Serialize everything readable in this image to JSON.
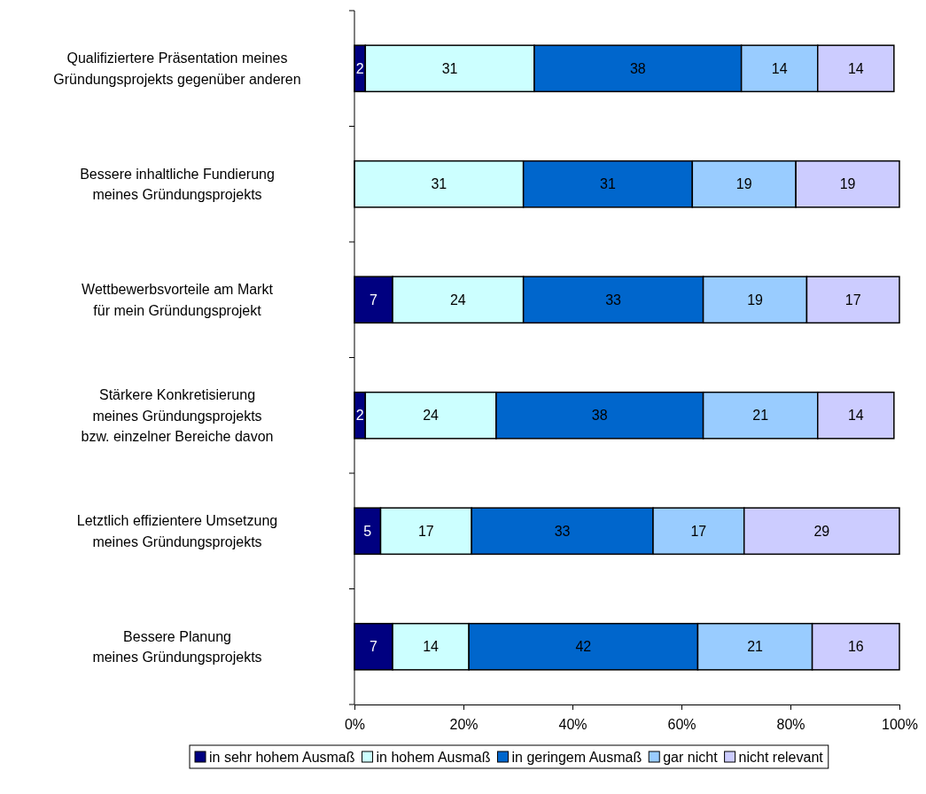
{
  "chart_data": {
    "type": "bar",
    "orientation": "horizontal",
    "stacked": true,
    "categories": [
      "Qualifiziertere Präsentation meines\nGründungsprojekts gegenüber anderen",
      "Bessere inhaltliche Fundierung\nmeines Gründungsprojekts",
      "Wettbewerbsvorteile am Markt\nfür mein Gründungsprojekt",
      "Stärkere Konkretisierung\nmeines Gründungsprojekts\nbzw. einzelner Bereiche davon",
      "Letztlich effizientere Umsetzung\nmeines Gründungsprojekts",
      "Bessere Planung\nmeines Gründungsprojekts"
    ],
    "series": [
      {
        "name": "in sehr hohem Ausmaß",
        "color": "#000080",
        "values": [
          2,
          null,
          7,
          2,
          4.8,
          7
        ],
        "value_labels": [
          "2",
          null,
          "7",
          "2",
          "5",
          "7"
        ]
      },
      {
        "name": "in hohem Ausmaß",
        "color": "#ccffff",
        "values": [
          31,
          31,
          24,
          24,
          16.7,
          14
        ],
        "value_labels": [
          "31",
          "31",
          "24",
          "24",
          "17",
          "14"
        ]
      },
      {
        "name": "in geringem Ausmaß",
        "color": "#0066cc",
        "values": [
          38,
          31,
          33,
          38,
          33.3,
          42
        ],
        "value_labels": [
          "38",
          "31",
          "33",
          "38",
          "33",
          "42"
        ]
      },
      {
        "name": "gar nicht",
        "color": "#99ccff",
        "values": [
          14,
          19,
          19,
          21,
          16.7,
          21
        ],
        "value_labels": [
          "14",
          "19",
          "19",
          "21",
          "17",
          "21"
        ]
      },
      {
        "name": "nicht relevant",
        "color": "#ccccff",
        "values": [
          14,
          19,
          17,
          14,
          28.5,
          16
        ],
        "value_labels": [
          "14",
          "19",
          "17",
          "14",
          "29",
          "16"
        ]
      }
    ],
    "xlim": [
      0,
      100
    ],
    "xticks": [
      {
        "value": 0,
        "label": "0%"
      },
      {
        "value": 20,
        "label": "20%"
      },
      {
        "value": 40,
        "label": "40%"
      },
      {
        "value": 60,
        "label": "60%"
      },
      {
        "value": 80,
        "label": "80%"
      },
      {
        "value": 100,
        "label": "100%"
      }
    ],
    "legend": "bottom",
    "grid": false
  }
}
